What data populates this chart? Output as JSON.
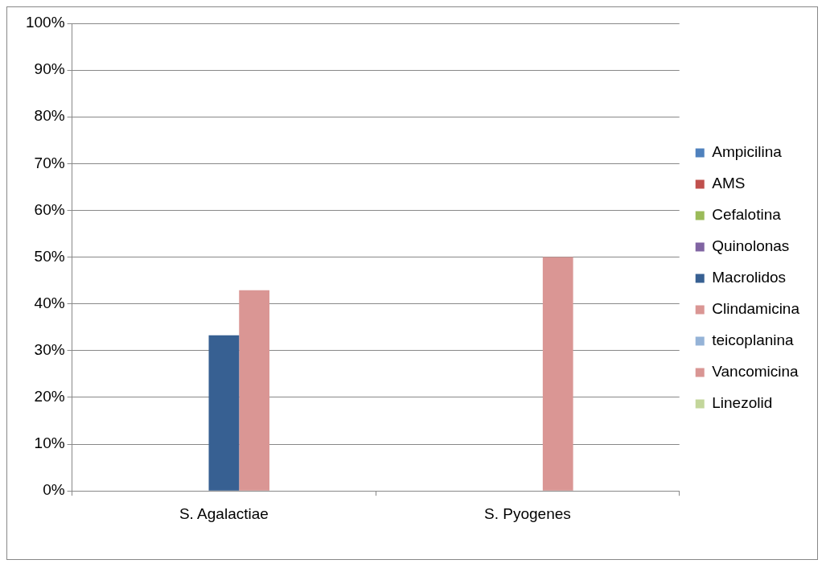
{
  "chart_data": {
    "type": "bar",
    "categories": [
      "S. Agalactiae",
      "S. Pyogenes"
    ],
    "series": [
      {
        "name": "Ampicilina",
        "color": "#4f81bd",
        "values": [
          0,
          0
        ]
      },
      {
        "name": "AMS",
        "color": "#c0504d",
        "values": [
          0,
          0
        ]
      },
      {
        "name": "Cefalotina",
        "color": "#9bbb59",
        "values": [
          0,
          0
        ]
      },
      {
        "name": "Quinolonas",
        "color": "#8064a2",
        "values": [
          0,
          0
        ]
      },
      {
        "name": "Macrolidos",
        "color": "#376092",
        "values": [
          33.3,
          0
        ]
      },
      {
        "name": "Clindamicina",
        "color": "#da9694",
        "values": [
          42.9,
          50
        ]
      },
      {
        "name": "teicoplanina",
        "color": "#95b3d7",
        "values": [
          0,
          0
        ]
      },
      {
        "name": "Vancomicina",
        "color": "#d99694",
        "values": [
          0,
          0
        ]
      },
      {
        "name": "Linezolid",
        "color": "#c3d69b",
        "values": [
          0,
          0
        ]
      }
    ],
    "ylim": [
      0,
      100
    ],
    "yticks": [
      {
        "value": 0,
        "label": "0%"
      },
      {
        "value": 10,
        "label": "10%"
      },
      {
        "value": 20,
        "label": "20%"
      },
      {
        "value": 30,
        "label": "30%"
      },
      {
        "value": 40,
        "label": "40%"
      },
      {
        "value": 50,
        "label": "50%"
      },
      {
        "value": 60,
        "label": "60%"
      },
      {
        "value": 70,
        "label": "70%"
      },
      {
        "value": 80,
        "label": "80%"
      },
      {
        "value": 90,
        "label": "90%"
      },
      {
        "value": 100,
        "label": "100%"
      }
    ],
    "grid": "y",
    "legend": "right"
  }
}
